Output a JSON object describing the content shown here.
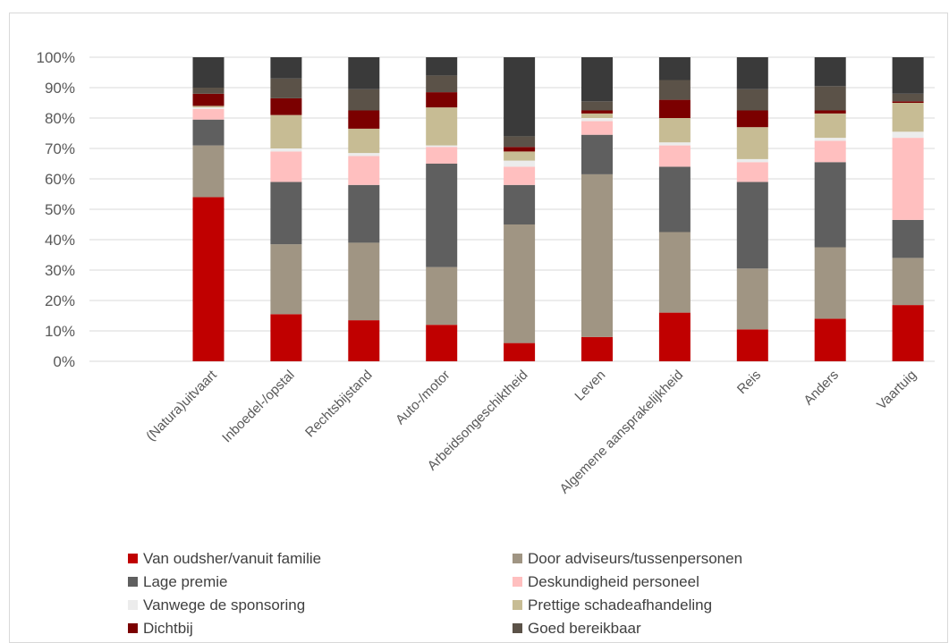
{
  "chart_data": {
    "type": "bar",
    "stacked": true,
    "percent_stacked": true,
    "categories": [
      "(Natura)uitvaart",
      "Inboedel-/opstal",
      "Rechtsbijstand",
      "Auto-/motor",
      "Arbeidsongeschiktheid",
      "Leven",
      "Algemene aansprakelijkheid",
      "Reis",
      "Anders",
      "Vaartuig"
    ],
    "y_ticks": [
      "0%",
      "10%",
      "20%",
      "30%",
      "40%",
      "50%",
      "60%",
      "70%",
      "80%",
      "90%",
      "100%"
    ],
    "ylim": [
      0,
      100
    ],
    "grid": true,
    "legend_position": "bottom",
    "series": [
      {
        "name": "Van oudsher/vanuit familie",
        "color": "#c00000",
        "values": [
          54,
          15.5,
          13.5,
          12,
          6,
          8,
          16,
          10.5,
          14,
          18.5
        ]
      },
      {
        "name": "Door adviseurs/tussenpersonen",
        "color": "#a09583",
        "values": [
          17,
          23,
          25.5,
          19,
          39,
          53.5,
          26.5,
          20,
          23.5,
          15.5
        ]
      },
      {
        "name": "Lage premie",
        "color": "#5f5f5f",
        "values": [
          8.5,
          20.5,
          19,
          34,
          13,
          13,
          21.5,
          28.5,
          28,
          12.5
        ]
      },
      {
        "name": "Deskundigheid personeel",
        "color": "#ffbfbf",
        "values": [
          3.5,
          10,
          9.5,
          5.5,
          6,
          4.5,
          7,
          6.5,
          7,
          27
        ]
      },
      {
        "name": "Vanwege de sponsoring",
        "color": "#ececec",
        "values": [
          0.5,
          1,
          1,
          0.5,
          2,
          1,
          1,
          1,
          1,
          2
        ]
      },
      {
        "name": "Prettige schadeafhandeling",
        "color": "#c7bc94",
        "values": [
          0.5,
          11,
          8,
          12.5,
          3,
          1.5,
          8,
          10.5,
          8,
          9.5
        ]
      },
      {
        "name": "Dichtbij",
        "color": "#7b0000",
        "values": [
          4,
          5.5,
          6,
          5,
          1.5,
          1,
          6,
          5.5,
          1,
          0.5
        ]
      },
      {
        "name": "Goed bereikbaar",
        "color": "#5b5248",
        "values": [
          2,
          6.5,
          7,
          5.5,
          3.5,
          3,
          6.5,
          7,
          8,
          2.5
        ]
      },
      {
        "name": "",
        "color": "#3a3a3a",
        "values": [
          10,
          7,
          10.5,
          6,
          26,
          14.5,
          7.5,
          10.5,
          9.5,
          12
        ]
      }
    ]
  }
}
